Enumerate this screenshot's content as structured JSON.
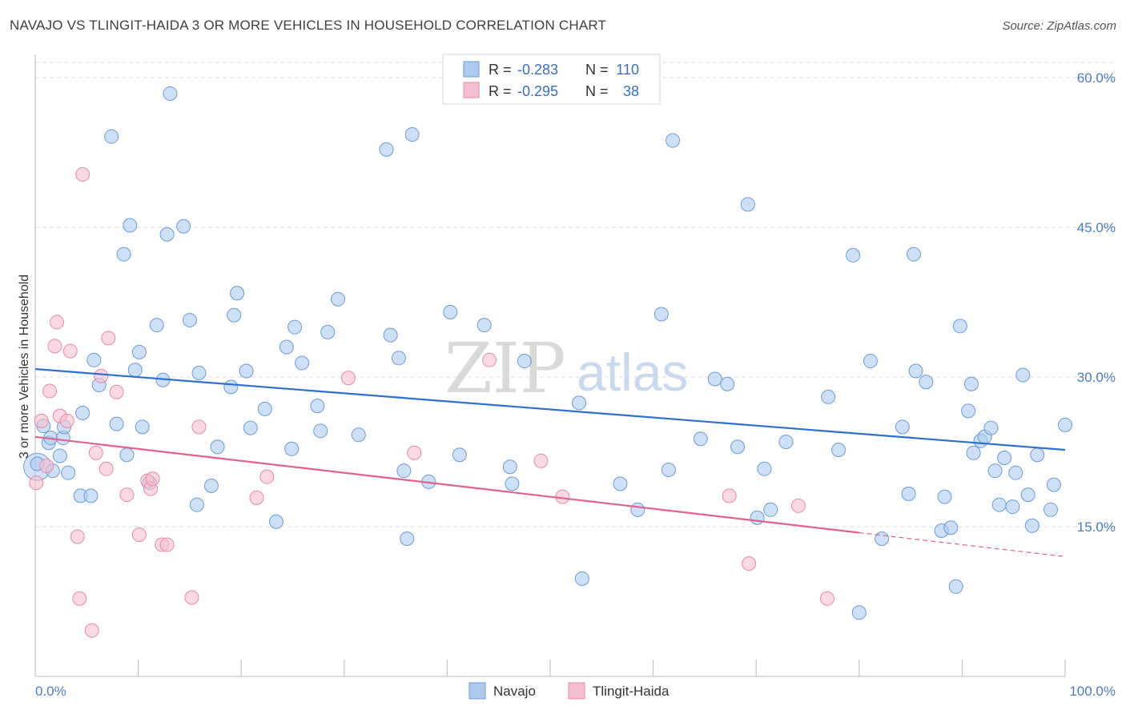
{
  "header": {
    "title": "NAVAJO VS TLINGIT-HAIDA 3 OR MORE VEHICLES IN HOUSEHOLD CORRELATION CHART",
    "source": "Source: ZipAtlas.com"
  },
  "watermark": {
    "part1": "ZIP",
    "part2": "atlas"
  },
  "legend": {
    "rows": [
      {
        "r_label": "R =",
        "r_value": "-0.283",
        "n_label": "N =",
        "n_value": "110"
      },
      {
        "r_label": "R =",
        "r_value": "-0.295",
        "n_label": "N =",
        "n_value": "38"
      }
    ]
  },
  "colors": {
    "navajo_fill": "#aecbef",
    "navajo_stroke": "#6b9bd8",
    "navajo_line": "#2f6fd0",
    "tlingit_fill": "#f6bfd0",
    "tlingit_stroke": "#e58aa8",
    "tlingit_line": "#e2628f",
    "grid": "#dcdcdc",
    "tick_text": "#4a7cc9"
  },
  "chart_data": {
    "type": "scatter",
    "title": "NAVAJO VS TLINGIT-HAIDA 3 OR MORE VEHICLES IN HOUSEHOLD CORRELATION CHART",
    "xlabel": "",
    "ylabel": "3 or more Vehicles in Household",
    "xlim": [
      0,
      100
    ],
    "ylim": [
      0,
      60
    ],
    "x_tick_labels": [
      "0.0%",
      "100.0%"
    ],
    "y_ticks": [
      15,
      30,
      45,
      60
    ],
    "y_tick_labels": [
      "15.0%",
      "30.0%",
      "45.0%",
      "60.0%"
    ],
    "legend_placement": "bottom-center",
    "grid": true,
    "series": [
      {
        "name": "Navajo",
        "r": -0.283,
        "n": 110,
        "trend": {
          "x": [
            0,
            100
          ],
          "y": [
            30.8,
            22.7
          ]
        },
        "points": [
          [
            0.2,
            21.3
          ],
          [
            0.8,
            25.1
          ],
          [
            1.3,
            23.4
          ],
          [
            1.5,
            23.9
          ],
          [
            1.7,
            20.6
          ],
          [
            2.4,
            22.1
          ],
          [
            2.7,
            23.9
          ],
          [
            2.8,
            25.0
          ],
          [
            3.2,
            20.4
          ],
          [
            4.4,
            18.1
          ],
          [
            4.6,
            26.4
          ],
          [
            5.4,
            18.1
          ],
          [
            5.7,
            31.7
          ],
          [
            6.2,
            29.2
          ],
          [
            7.4,
            54.1
          ],
          [
            7.9,
            25.3
          ],
          [
            8.6,
            42.3
          ],
          [
            8.9,
            22.2
          ],
          [
            9.2,
            45.2
          ],
          [
            9.7,
            30.7
          ],
          [
            10.1,
            32.5
          ],
          [
            10.4,
            25.0
          ],
          [
            11.1,
            19.4
          ],
          [
            11.8,
            35.2
          ],
          [
            12.4,
            29.7
          ],
          [
            12.8,
            44.3
          ],
          [
            13.1,
            58.4
          ],
          [
            14.4,
            45.1
          ],
          [
            15.0,
            35.7
          ],
          [
            15.7,
            17.2
          ],
          [
            15.9,
            30.4
          ],
          [
            17.1,
            19.1
          ],
          [
            17.7,
            23.0
          ],
          [
            19.0,
            29.0
          ],
          [
            19.3,
            36.2
          ],
          [
            19.6,
            38.4
          ],
          [
            20.5,
            30.6
          ],
          [
            20.9,
            24.9
          ],
          [
            22.3,
            26.8
          ],
          [
            23.4,
            15.5
          ],
          [
            24.4,
            33.0
          ],
          [
            24.9,
            22.8
          ],
          [
            25.2,
            35.0
          ],
          [
            25.9,
            31.4
          ],
          [
            27.4,
            27.1
          ],
          [
            27.7,
            24.6
          ],
          [
            28.4,
            34.5
          ],
          [
            29.4,
            37.8
          ],
          [
            31.4,
            24.2
          ],
          [
            34.1,
            52.8
          ],
          [
            34.5,
            34.2
          ],
          [
            35.3,
            31.9
          ],
          [
            35.8,
            20.6
          ],
          [
            36.1,
            13.8
          ],
          [
            36.6,
            54.3
          ],
          [
            38.2,
            19.5
          ],
          [
            40.3,
            36.5
          ],
          [
            41.2,
            22.2
          ],
          [
            43.6,
            35.2
          ],
          [
            46.1,
            21.0
          ],
          [
            46.3,
            19.3
          ],
          [
            47.5,
            31.6
          ],
          [
            52.8,
            27.4
          ],
          [
            53.1,
            9.8
          ],
          [
            56.8,
            19.3
          ],
          [
            58.5,
            16.7
          ],
          [
            60.8,
            36.3
          ],
          [
            61.5,
            20.7
          ],
          [
            61.9,
            53.7
          ],
          [
            64.6,
            23.8
          ],
          [
            66.0,
            29.8
          ],
          [
            67.2,
            29.3
          ],
          [
            68.2,
            23.0
          ],
          [
            69.2,
            47.3
          ],
          [
            70.1,
            15.9
          ],
          [
            70.8,
            20.8
          ],
          [
            71.4,
            16.7
          ],
          [
            72.9,
            23.5
          ],
          [
            77.0,
            28.0
          ],
          [
            78.0,
            22.7
          ],
          [
            79.4,
            42.2
          ],
          [
            80.0,
            6.4
          ],
          [
            81.1,
            31.6
          ],
          [
            82.2,
            13.8
          ],
          [
            84.2,
            25.0
          ],
          [
            84.8,
            18.3
          ],
          [
            85.3,
            42.3
          ],
          [
            85.5,
            30.6
          ],
          [
            86.5,
            29.5
          ],
          [
            88.0,
            14.6
          ],
          [
            88.3,
            18.0
          ],
          [
            88.9,
            14.9
          ],
          [
            89.4,
            9.0
          ],
          [
            89.8,
            35.1
          ],
          [
            90.6,
            26.6
          ],
          [
            90.9,
            29.3
          ],
          [
            91.1,
            22.4
          ],
          [
            91.8,
            23.6
          ],
          [
            92.2,
            24.0
          ],
          [
            92.8,
            24.9
          ],
          [
            93.2,
            20.6
          ],
          [
            93.6,
            17.2
          ],
          [
            94.1,
            21.9
          ],
          [
            94.9,
            17.0
          ],
          [
            95.2,
            20.4
          ],
          [
            95.9,
            30.2
          ],
          [
            96.4,
            18.2
          ],
          [
            96.8,
            15.1
          ],
          [
            97.3,
            22.2
          ],
          [
            98.6,
            16.7
          ],
          [
            98.9,
            19.2
          ],
          [
            100.0,
            25.2
          ]
        ]
      },
      {
        "name": "Tlingit-Haida",
        "r": -0.295,
        "n": 38,
        "trend": {
          "solid_x": [
            0,
            80
          ],
          "dashed_x": [
            80,
            100
          ],
          "y_at_0": 24.0,
          "y_at_100": 12.0
        },
        "points": [
          [
            0.1,
            19.4
          ],
          [
            0.6,
            25.6
          ],
          [
            1.1,
            21.1
          ],
          [
            1.4,
            28.6
          ],
          [
            1.9,
            33.1
          ],
          [
            2.1,
            35.5
          ],
          [
            2.4,
            26.1
          ],
          [
            3.1,
            25.6
          ],
          [
            3.4,
            32.6
          ],
          [
            4.1,
            14.0
          ],
          [
            4.3,
            7.8
          ],
          [
            4.6,
            50.3
          ],
          [
            5.5,
            4.6
          ],
          [
            5.9,
            22.4
          ],
          [
            6.4,
            30.1
          ],
          [
            6.9,
            20.8
          ],
          [
            7.1,
            33.9
          ],
          [
            7.9,
            28.5
          ],
          [
            8.9,
            18.2
          ],
          [
            10.1,
            14.2
          ],
          [
            10.9,
            19.6
          ],
          [
            11.2,
            18.8
          ],
          [
            11.4,
            19.8
          ],
          [
            12.3,
            13.2
          ],
          [
            12.8,
            13.2
          ],
          [
            15.2,
            7.9
          ],
          [
            15.9,
            25.0
          ],
          [
            21.5,
            17.9
          ],
          [
            22.5,
            20.0
          ],
          [
            30.4,
            29.9
          ],
          [
            36.8,
            22.4
          ],
          [
            44.1,
            31.7
          ],
          [
            49.1,
            21.6
          ],
          [
            51.2,
            18.0
          ],
          [
            67.4,
            18.1
          ],
          [
            69.3,
            11.3
          ],
          [
            74.1,
            17.1
          ],
          [
            76.9,
            7.8
          ]
        ]
      }
    ]
  },
  "bottom_legend": {
    "items": [
      "Navajo",
      "Tlingit-Haida"
    ]
  }
}
